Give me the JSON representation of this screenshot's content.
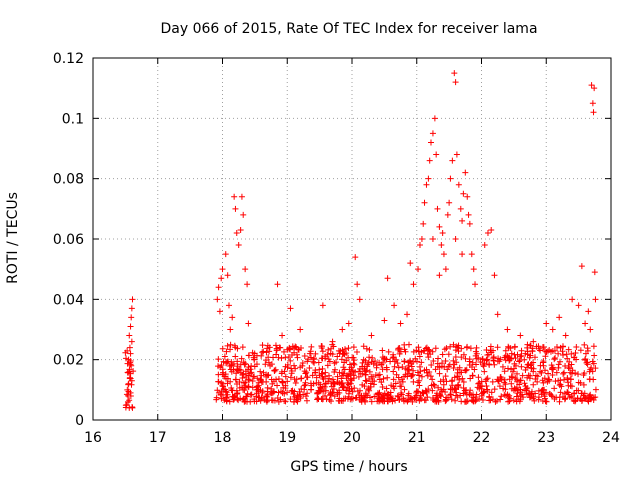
{
  "chart_data": {
    "type": "scatter",
    "title": "Day 066 of 2015, Rate Of TEC Index for receiver lama",
    "xlabel": "GPS time / hours",
    "ylabel": "ROTI / TECUs",
    "xlim": [
      16,
      24
    ],
    "ylim": [
      0,
      0.12
    ],
    "xticks": [
      16,
      17,
      18,
      19,
      20,
      21,
      22,
      23,
      24
    ],
    "xtick_labels": [
      "16",
      "17",
      "18",
      "19",
      "20",
      "21",
      "22",
      "23",
      "24"
    ],
    "yticks": [
      0,
      0.02,
      0.04,
      0.06,
      0.08,
      0.1,
      0.12
    ],
    "ytick_labels": [
      "0",
      "0.02",
      "0.04",
      "0.06",
      "0.08",
      "0.1",
      "0.12"
    ],
    "grid": true,
    "marker": "+",
    "color": "#ff0000",
    "series": [
      {
        "name": "ROTI",
        "points": [
          [
            16.52,
            0.005
          ],
          [
            16.54,
            0.008
          ],
          [
            16.55,
            0.012
          ],
          [
            16.56,
            0.016
          ],
          [
            16.55,
            0.02
          ],
          [
            16.57,
            0.024
          ],
          [
            16.56,
            0.028
          ],
          [
            16.58,
            0.031
          ],
          [
            16.59,
            0.034
          ],
          [
            16.6,
            0.037
          ],
          [
            16.61,
            0.04
          ],
          [
            16.53,
            0.01
          ],
          [
            16.57,
            0.014
          ],
          [
            16.59,
            0.018
          ],
          [
            16.58,
            0.022
          ],
          [
            16.6,
            0.026
          ],
          [
            16.54,
            0.006
          ],
          [
            16.56,
            0.004
          ],
          [
            16.58,
            0.009
          ],
          [
            16.6,
            0.013
          ],
          [
            17.92,
            0.04
          ],
          [
            17.94,
            0.044
          ],
          [
            17.96,
            0.036
          ],
          [
            17.98,
            0.047
          ],
          [
            18.0,
            0.05
          ],
          [
            18.05,
            0.055
          ],
          [
            18.08,
            0.048
          ],
          [
            18.1,
            0.038
          ],
          [
            18.12,
            0.03
          ],
          [
            18.18,
            0.074
          ],
          [
            18.2,
            0.07
          ],
          [
            18.22,
            0.062
          ],
          [
            18.25,
            0.058
          ],
          [
            18.28,
            0.063
          ],
          [
            18.3,
            0.074
          ],
          [
            18.32,
            0.068
          ],
          [
            18.35,
            0.05
          ],
          [
            18.38,
            0.045
          ],
          [
            18.15,
            0.034
          ],
          [
            18.4,
            0.032
          ],
          [
            18.85,
            0.045
          ],
          [
            18.92,
            0.028
          ],
          [
            19.05,
            0.037
          ],
          [
            19.2,
            0.03
          ],
          [
            19.35,
            0.022
          ],
          [
            19.55,
            0.038
          ],
          [
            19.7,
            0.026
          ],
          [
            19.85,
            0.03
          ],
          [
            19.95,
            0.032
          ],
          [
            20.05,
            0.054
          ],
          [
            20.08,
            0.045
          ],
          [
            20.12,
            0.04
          ],
          [
            20.3,
            0.028
          ],
          [
            20.5,
            0.033
          ],
          [
            20.55,
            0.047
          ],
          [
            20.65,
            0.038
          ],
          [
            20.75,
            0.032
          ],
          [
            20.85,
            0.035
          ],
          [
            20.9,
            0.052
          ],
          [
            20.95,
            0.045
          ],
          [
            21.02,
            0.05
          ],
          [
            21.05,
            0.058
          ],
          [
            21.08,
            0.06
          ],
          [
            21.1,
            0.065
          ],
          [
            21.12,
            0.072
          ],
          [
            21.15,
            0.078
          ],
          [
            21.18,
            0.08
          ],
          [
            21.2,
            0.086
          ],
          [
            21.22,
            0.092
          ],
          [
            21.25,
            0.095
          ],
          [
            21.28,
            0.1
          ],
          [
            21.3,
            0.088
          ],
          [
            21.32,
            0.07
          ],
          [
            21.35,
            0.064
          ],
          [
            21.38,
            0.058
          ],
          [
            21.4,
            0.062
          ],
          [
            21.42,
            0.055
          ],
          [
            21.45,
            0.05
          ],
          [
            21.48,
            0.068
          ],
          [
            21.5,
            0.072
          ],
          [
            21.52,
            0.08
          ],
          [
            21.55,
            0.086
          ],
          [
            21.58,
            0.115
          ],
          [
            21.6,
            0.112
          ],
          [
            21.62,
            0.088
          ],
          [
            21.65,
            0.078
          ],
          [
            21.68,
            0.07
          ],
          [
            21.7,
            0.066
          ],
          [
            21.72,
            0.075
          ],
          [
            21.75,
            0.082
          ],
          [
            21.78,
            0.074
          ],
          [
            21.8,
            0.068
          ],
          [
            21.82,
            0.065
          ],
          [
            21.85,
            0.055
          ],
          [
            21.88,
            0.05
          ],
          [
            21.9,
            0.045
          ],
          [
            21.25,
            0.06
          ],
          [
            21.35,
            0.048
          ],
          [
            21.6,
            0.06
          ],
          [
            21.7,
            0.055
          ],
          [
            22.05,
            0.058
          ],
          [
            22.1,
            0.062
          ],
          [
            22.15,
            0.063
          ],
          [
            22.2,
            0.048
          ],
          [
            22.25,
            0.035
          ],
          [
            22.4,
            0.03
          ],
          [
            22.6,
            0.028
          ],
          [
            22.8,
            0.026
          ],
          [
            23.0,
            0.032
          ],
          [
            23.1,
            0.03
          ],
          [
            23.2,
            0.034
          ],
          [
            23.3,
            0.028
          ],
          [
            23.4,
            0.04
          ],
          [
            23.5,
            0.038
          ],
          [
            23.55,
            0.051
          ],
          [
            23.6,
            0.032
          ],
          [
            23.65,
            0.036
          ],
          [
            23.7,
            0.111
          ],
          [
            23.72,
            0.105
          ],
          [
            23.74,
            0.11
          ],
          [
            23.73,
            0.102
          ],
          [
            23.75,
            0.049
          ],
          [
            23.76,
            0.04
          ],
          [
            23.68,
            0.03
          ]
        ]
      }
    ],
    "band_segments": [
      {
        "x_start": 16.5,
        "x_end": 16.62,
        "y_low": 0.004,
        "y_high": 0.025,
        "count": 25
      },
      {
        "x_start": 17.9,
        "x_end": 23.78,
        "y_low": 0.006,
        "y_high": 0.025,
        "count": 1300
      }
    ]
  }
}
